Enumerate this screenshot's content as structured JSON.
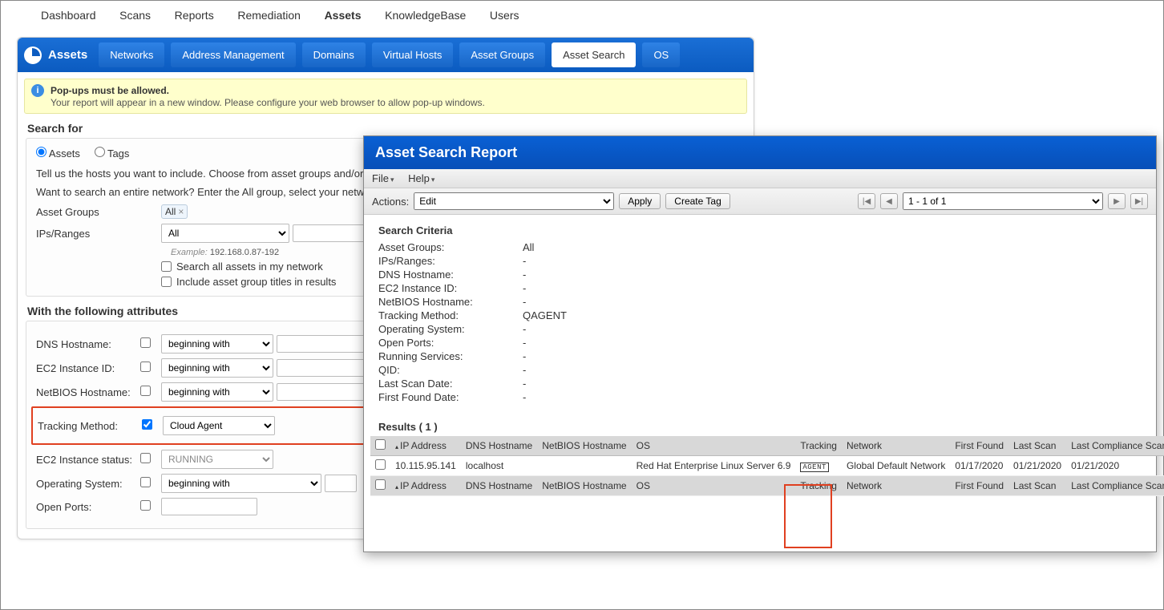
{
  "topnav": {
    "items": [
      "Dashboard",
      "Scans",
      "Reports",
      "Remediation",
      "Assets",
      "KnowledgeBase",
      "Users"
    ],
    "active_index": 4
  },
  "section": {
    "title": "Assets",
    "subtabs": [
      "Networks",
      "Address Management",
      "Domains",
      "Virtual Hosts",
      "Asset Groups",
      "Asset Search",
      "OS"
    ],
    "active_index": 5
  },
  "info": {
    "heading": "Pop-ups must be allowed.",
    "body": "Your report will appear in a new window. Please configure your web browser to allow pop-up windows."
  },
  "search": {
    "heading": "Search for",
    "radio_assets": "Assets",
    "radio_tags": "Tags",
    "radio_selected": "assets",
    "hint1": "Tell us the hosts you want to include. Choose from asset groups and/or IP add",
    "hint2": "Want to search an entire network? Enter the All group, select your network an",
    "asset_groups_label": "Asset Groups",
    "asset_group_chip": "All",
    "ips_label": "IPs/Ranges",
    "ips_select": "All",
    "example_label": "Example:",
    "example_text": "192.168.0.87-192",
    "cb_search_all": "Search all assets in my network",
    "cb_include_titles": "Include asset group titles in results",
    "attrs_heading": "With the following attributes",
    "dns_label": "DNS Hostname:",
    "ec2id_label": "EC2 Instance ID:",
    "netbios_label": "NetBIOS Hostname:",
    "tracking_label": "Tracking Method:",
    "tracking_value": "Cloud Agent",
    "ec2status_label": "EC2 Instance status:",
    "ec2status_value": "RUNNING",
    "os_label": "Operating System:",
    "ports_label": "Open Ports:",
    "beginning_with": "beginning with"
  },
  "report": {
    "title": "Asset Search Report",
    "menu_file": "File",
    "menu_help": "Help",
    "actions_label": "Actions:",
    "actions_value": "Edit",
    "apply": "Apply",
    "create_tag": "Create Tag",
    "pager_label": "1 - 1 of 1",
    "criteria_heading": "Search Criteria",
    "criteria": [
      {
        "k": "Asset Groups:",
        "v": "All"
      },
      {
        "k": "IPs/Ranges:",
        "v": "-"
      },
      {
        "k": "DNS Hostname:",
        "v": "-"
      },
      {
        "k": "EC2 Instance ID:",
        "v": "-"
      },
      {
        "k": "NetBIOS Hostname:",
        "v": "-"
      },
      {
        "k": "Tracking Method:",
        "v": "QAGENT"
      },
      {
        "k": "Operating System:",
        "v": "-"
      },
      {
        "k": "Open Ports:",
        "v": "-"
      },
      {
        "k": "Running Services:",
        "v": "-"
      },
      {
        "k": "QID:",
        "v": "-"
      },
      {
        "k": "Last Scan Date:",
        "v": "-"
      },
      {
        "k": "First Found Date:",
        "v": "-"
      }
    ],
    "results_heading": "Results ( 1 )",
    "columns": [
      "IP Address",
      "DNS Hostname",
      "NetBIOS Hostname",
      "OS",
      "Tracking",
      "Network",
      "First Found",
      "Last Scan",
      "Last Compliance Scan"
    ],
    "row": {
      "ip": "10.115.95.141",
      "dns": "localhost",
      "netbios": "",
      "os": "Red Hat Enterprise Linux Server 6.9",
      "tracking_badge": "AGENT",
      "network": "Global Default Network",
      "first_found": "01/17/2020",
      "last_scan": "01/21/2020",
      "last_compliance": "01/21/2020"
    }
  },
  "colors": {
    "blue_grad_top": "#1a6fd6",
    "blue_grad_bot": "#0b5bc0",
    "info_bg": "#ffffcc",
    "red_highlight": "#e04020",
    "table_header_bg": "#d8d8d8"
  }
}
